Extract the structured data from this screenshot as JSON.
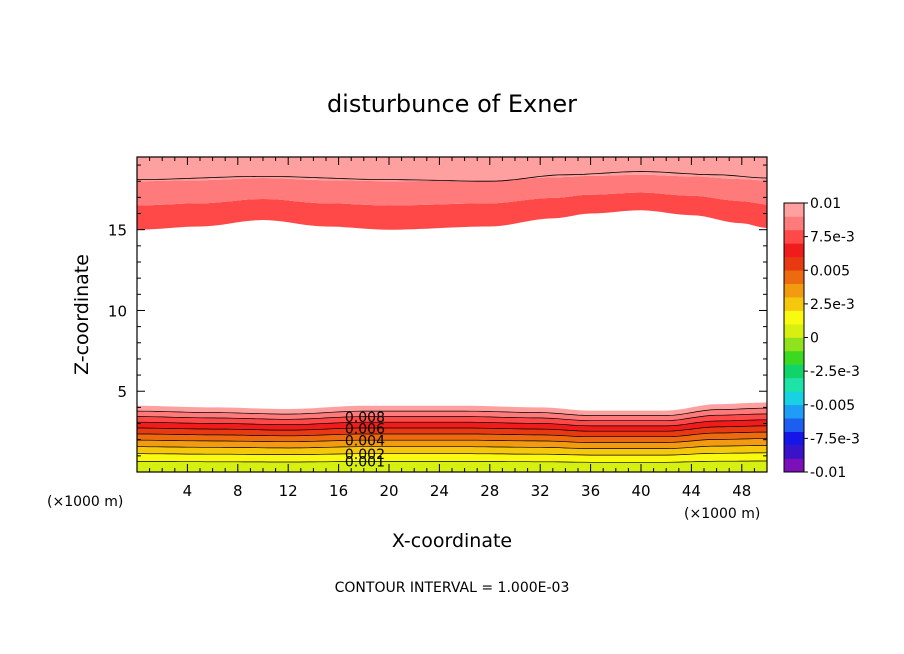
{
  "chart_data": {
    "type": "heatmap",
    "subtype": "filled-contour",
    "title": "disturbunce of Exner",
    "xlabel": "X-coordinate",
    "ylabel": "Z-coordinate",
    "x_unit": "(×1000 m)",
    "x_unit_right": "(×1000 m)",
    "xlim": [
      0,
      50
    ],
    "ylim": [
      0,
      19.5
    ],
    "x_ticks": [
      4,
      8,
      12,
      16,
      20,
      24,
      28,
      32,
      36,
      40,
      44,
      48
    ],
    "y_ticks": [
      5,
      10,
      15
    ],
    "footer": "CONTOUR INTERVAL = 1.000E-03",
    "colorbar": {
      "min": -0.01,
      "max": 0.01,
      "labels": [
        "0.01",
        "7.5e-3",
        "0.005",
        "2.5e-3",
        "0",
        "-2.5e-3",
        "-0.005",
        "-7.5e-3",
        "-0.01"
      ],
      "colors": [
        "#7b0fb8",
        "#3a12c8",
        "#1616e6",
        "#1c5ef0",
        "#1f9cf5",
        "#18d2e4",
        "#1fe3a6",
        "#10d46a",
        "#3bd91f",
        "#8fe21e",
        "#d8ef12",
        "#fafa10",
        "#f5c80e",
        "#f29b10",
        "#ec6a10",
        "#e83a12",
        "#f01c1c",
        "#ff4848",
        "#ff7a7a",
        "#ffa0a0"
      ]
    },
    "top_layer": {
      "boundary_z": [
        {
          "x": 0,
          "z": 15.0
        },
        {
          "x": 5,
          "z": 15.2
        },
        {
          "x": 10,
          "z": 15.6
        },
        {
          "x": 15,
          "z": 15.2
        },
        {
          "x": 20,
          "z": 15.0
        },
        {
          "x": 28,
          "z": 15.2
        },
        {
          "x": 33,
          "z": 15.7
        },
        {
          "x": 36,
          "z": 16.0
        },
        {
          "x": 40,
          "z": 16.2
        },
        {
          "x": 44,
          "z": 15.9
        },
        {
          "x": 48,
          "z": 15.4
        },
        {
          "x": 50,
          "z": 15.1
        }
      ],
      "contour_z": [
        {
          "x": 0,
          "z": 18.1
        },
        {
          "x": 10,
          "z": 18.3
        },
        {
          "x": 20,
          "z": 18.1
        },
        {
          "x": 28,
          "z": 18.0
        },
        {
          "x": 34,
          "z": 18.4
        },
        {
          "x": 40,
          "z": 18.6
        },
        {
          "x": 46,
          "z": 18.4
        },
        {
          "x": 50,
          "z": 18.2
        }
      ],
      "band_levels": [
        0.008,
        0.009,
        0.01
      ]
    },
    "bottom_layer": {
      "top_z": [
        {
          "x": 0,
          "z": 4.1
        },
        {
          "x": 6,
          "z": 4.0
        },
        {
          "x": 12,
          "z": 3.9
        },
        {
          "x": 18,
          "z": 4.1
        },
        {
          "x": 26,
          "z": 4.1
        },
        {
          "x": 32,
          "z": 4.0
        },
        {
          "x": 36,
          "z": 3.8
        },
        {
          "x": 42,
          "z": 3.8
        },
        {
          "x": 46,
          "z": 4.2
        },
        {
          "x": 50,
          "z": 4.3
        }
      ],
      "levels": [
        0.0,
        0.001,
        0.002,
        0.003,
        0.004,
        0.005,
        0.006,
        0.007,
        0.008,
        0.009
      ],
      "contour_labels": [
        {
          "text": "0.008",
          "level": 0.008
        },
        {
          "text": "0.006",
          "level": 0.006
        },
        {
          "text": "0.004",
          "level": 0.004
        },
        {
          "text": "0.002",
          "level": 0.002
        },
        {
          "text": "0.001",
          "level": 0.001
        }
      ],
      "label_x": 16.5
    }
  }
}
